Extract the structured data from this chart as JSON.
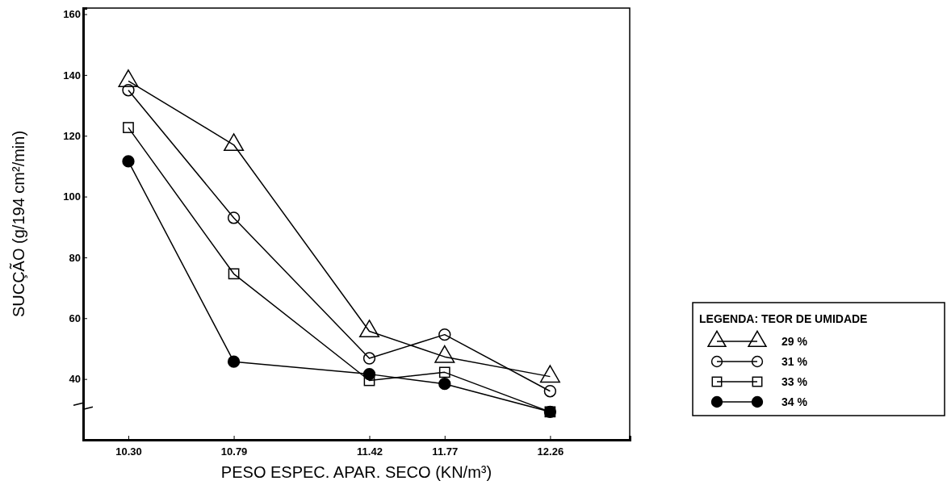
{
  "chart_data": {
    "type": "line",
    "xlabel": "PESO ESPEC. APAR. SECO (KN/m³)",
    "ylabel": "SUCÇÃO (g/194 cm²/min)",
    "legend_title": "LEGENDA: TEOR DE UMIDADE",
    "x": [
      10.3,
      10.79,
      11.42,
      11.77,
      12.26
    ],
    "xlim": [
      10.09,
      12.63
    ],
    "xticks": [
      {
        "value": 10.3,
        "label": "10.30"
      },
      {
        "value": 10.79,
        "label": "10.79"
      },
      {
        "value": 11.42,
        "label": "11.42"
      },
      {
        "value": 11.77,
        "label": "11.77"
      },
      {
        "value": 12.26,
        "label": "12.26"
      }
    ],
    "ylim": [
      20,
      162
    ],
    "yticks": [
      40,
      60,
      80,
      100,
      120,
      140,
      160
    ],
    "series": [
      {
        "name": "29 %",
        "color": "#000000",
        "marker": "triangle",
        "values": [
          138,
          117,
          55.7,
          47.3,
          40.8
        ]
      },
      {
        "name": "31 %",
        "color": "#000000",
        "marker": "circle",
        "values": [
          135,
          93,
          46.8,
          54.6,
          36
        ]
      },
      {
        "name": "33 %",
        "color": "#000000",
        "marker": "square",
        "values": [
          122.7,
          74.6,
          39.5,
          42.2,
          29.2
        ]
      },
      {
        "name": "34 %",
        "color": "#000000",
        "marker": "dot",
        "values": [
          111.6,
          45.7,
          41.6,
          38.4,
          29.2
        ]
      }
    ],
    "grid": false,
    "legend": "right",
    "line_style": "solid"
  }
}
